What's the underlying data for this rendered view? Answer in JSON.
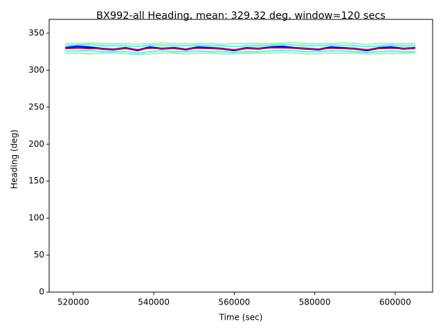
{
  "chart_data": {
    "type": "line",
    "title": "BX992-all Heading, mean: 329.32 deg, window=120 secs",
    "x_label": "Time (sec)",
    "y_label": "Heading (deg)",
    "x": [
      518000,
      521000,
      524000,
      527000,
      530000,
      533000,
      536000,
      539000,
      542000,
      545000,
      548000,
      551000,
      554000,
      557000,
      560000,
      563000,
      566000,
      569000,
      572000,
      575000,
      578000,
      581000,
      584000,
      587000,
      590000,
      593000,
      596000,
      599000,
      602000,
      605000
    ],
    "series": [
      {
        "color": "#90ee90",
        "values": [
          336,
          336,
          337,
          336,
          336,
          336,
          335,
          336,
          337,
          336,
          336,
          336,
          336,
          335,
          336,
          336,
          336,
          336,
          337,
          337,
          336,
          336,
          336,
          337,
          336,
          335,
          336,
          336,
          336,
          336
        ]
      },
      {
        "color": "#90ee90",
        "values": [
          323,
          323,
          322,
          323,
          323,
          322,
          321,
          322,
          323,
          323,
          322,
          323,
          323,
          322,
          322,
          323,
          323,
          323,
          324,
          323,
          322,
          322,
          323,
          323,
          323,
          322,
          322,
          323,
          323,
          323
        ]
      },
      {
        "color": "#00ffff",
        "values": [
          333,
          334,
          335,
          333,
          333,
          333,
          332,
          334,
          334,
          333,
          333,
          334,
          333,
          333,
          332,
          333,
          333,
          334,
          335,
          334,
          333,
          333,
          334,
          334,
          333,
          332,
          333,
          334,
          333,
          333
        ]
      },
      {
        "color": "#00ffff",
        "values": [
          326,
          326,
          327,
          325,
          325,
          325,
          323,
          325,
          326,
          325,
          325,
          326,
          325,
          325,
          324,
          325,
          325,
          326,
          327,
          326,
          325,
          325,
          326,
          326,
          325,
          324,
          325,
          326,
          325,
          325
        ]
      },
      {
        "color": "#0000ff",
        "values": [
          330,
          332,
          331,
          329,
          328,
          330,
          327,
          331,
          329,
          330,
          328,
          331,
          330,
          329,
          327,
          330,
          329,
          331,
          332,
          330,
          329,
          328,
          331,
          330,
          329,
          327,
          330,
          331,
          329,
          330
        ]
      },
      {
        "color": "#ff0000",
        "values": [
          329,
          329.5,
          329,
          329,
          328.5,
          329,
          328,
          329.5,
          329,
          329,
          328.5,
          329.5,
          329,
          329,
          328,
          329,
          329,
          330,
          330,
          329.5,
          329,
          328.5,
          329.5,
          329,
          329,
          328,
          329,
          329.5,
          329,
          329
        ]
      }
    ],
    "xlim": [
      514000,
      609300
    ],
    "ylim": [
      0,
      368.7
    ],
    "xticks": [
      520000,
      540000,
      560000,
      580000,
      600000
    ],
    "yticks": [
      0,
      50,
      100,
      150,
      200,
      250,
      300,
      350
    ]
  }
}
